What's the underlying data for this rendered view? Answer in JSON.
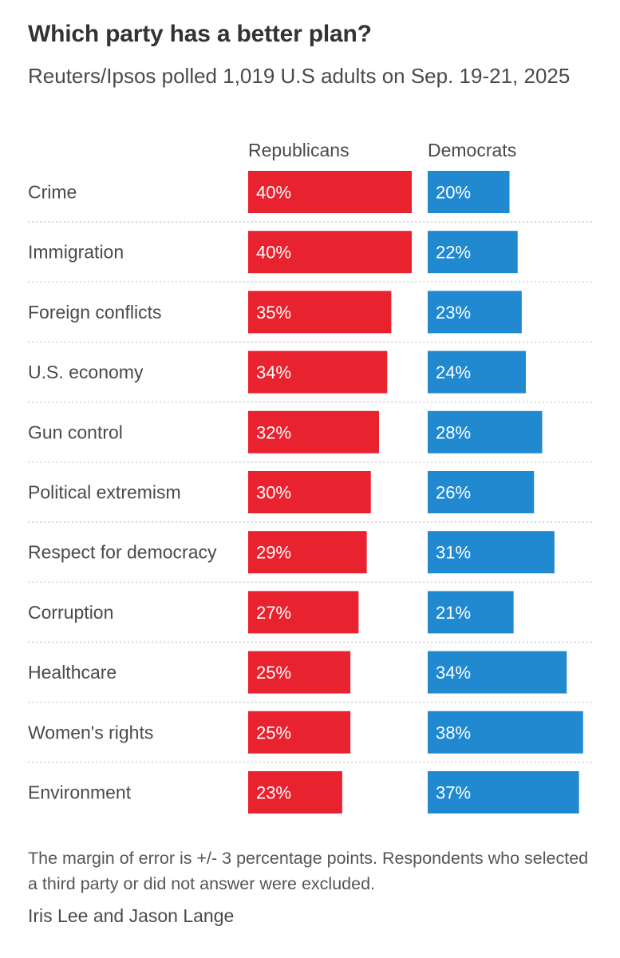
{
  "header": {
    "title": "Which party has a better plan?",
    "subtitle": "Reuters/Ipsos polled 1,019 U.S adults on Sep. 19-21, 2025"
  },
  "chart_data": {
    "type": "bar",
    "title": "Which party has a better plan?",
    "categories": [
      "Crime",
      "Immigration",
      "Foreign conflicts",
      "U.S. economy",
      "Gun control",
      "Political extremism",
      "Respect for democracy",
      "Corruption",
      "Healthcare",
      "Women's rights",
      "Environment"
    ],
    "series": [
      {
        "name": "Republicans",
        "color": "#e8222f",
        "values": [
          40,
          40,
          35,
          34,
          32,
          30,
          29,
          27,
          25,
          25,
          23
        ]
      },
      {
        "name": "Democrats",
        "color": "#2189d0",
        "values": [
          20,
          22,
          23,
          24,
          28,
          26,
          31,
          21,
          34,
          38,
          37
        ]
      }
    ],
    "value_suffix": "%",
    "xlabel": "",
    "ylabel": "",
    "xlim": [
      0,
      40
    ]
  },
  "footer": {
    "note": "The margin of error is +/- 3 percentage points. Respondents who selected a third party or did not answer were excluded.",
    "credit": "Iris Lee and Jason Lange"
  }
}
